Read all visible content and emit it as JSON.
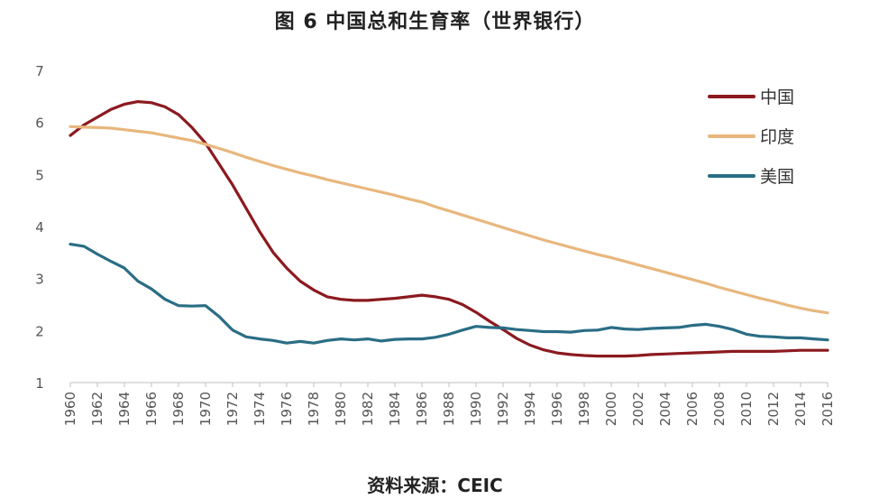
{
  "chart_data": {
    "type": "line",
    "title": "图 6  中国总和生育率（世界银行）",
    "source": "资料来源：CEIC",
    "xlabel": "",
    "ylabel": "",
    "xlim": [
      1960,
      2016
    ],
    "ylim": [
      1,
      7
    ],
    "yticks": [
      1,
      2,
      3,
      4,
      5,
      6,
      7
    ],
    "xticks": [
      1960,
      1962,
      1964,
      1966,
      1968,
      1970,
      1972,
      1974,
      1976,
      1978,
      1980,
      1982,
      1984,
      1986,
      1988,
      1990,
      1992,
      1994,
      1996,
      1998,
      2000,
      2002,
      2004,
      2006,
      2008,
      2010,
      2012,
      2014,
      2016
    ],
    "grid": false,
    "legend_position": "top-right",
    "x": [
      1960,
      1961,
      1962,
      1963,
      1964,
      1965,
      1966,
      1967,
      1968,
      1969,
      1970,
      1971,
      1972,
      1973,
      1974,
      1975,
      1976,
      1977,
      1978,
      1979,
      1980,
      1981,
      1982,
      1983,
      1984,
      1985,
      1986,
      1987,
      1988,
      1989,
      1990,
      1991,
      1992,
      1993,
      1994,
      1995,
      1996,
      1997,
      1998,
      1999,
      2000,
      2001,
      2002,
      2003,
      2004,
      2005,
      2006,
      2007,
      2008,
      2009,
      2010,
      2011,
      2012,
      2013,
      2014,
      2015,
      2016
    ],
    "series": [
      {
        "name": "中国",
        "color": "#8b1a1f",
        "values": [
          5.75,
          5.95,
          6.1,
          6.25,
          6.35,
          6.4,
          6.38,
          6.3,
          6.15,
          5.9,
          5.6,
          5.2,
          4.8,
          4.35,
          3.9,
          3.5,
          3.2,
          2.95,
          2.78,
          2.65,
          2.6,
          2.58,
          2.58,
          2.6,
          2.62,
          2.65,
          2.68,
          2.65,
          2.6,
          2.5,
          2.35,
          2.18,
          2.02,
          1.85,
          1.72,
          1.63,
          1.57,
          1.54,
          1.52,
          1.51,
          1.51,
          1.51,
          1.52,
          1.54,
          1.55,
          1.56,
          1.57,
          1.58,
          1.59,
          1.6,
          1.6,
          1.6,
          1.6,
          1.61,
          1.62,
          1.62,
          1.62
        ]
      },
      {
        "name": "印度",
        "color": "#e8b77d",
        "values": [
          5.92,
          5.91,
          5.9,
          5.89,
          5.86,
          5.83,
          5.8,
          5.75,
          5.7,
          5.65,
          5.58,
          5.5,
          5.42,
          5.33,
          5.25,
          5.17,
          5.1,
          5.03,
          4.97,
          4.9,
          4.84,
          4.78,
          4.72,
          4.66,
          4.6,
          4.53,
          4.47,
          4.38,
          4.3,
          4.22,
          4.14,
          4.06,
          3.98,
          3.9,
          3.82,
          3.74,
          3.67,
          3.6,
          3.53,
          3.46,
          3.4,
          3.33,
          3.26,
          3.19,
          3.12,
          3.05,
          2.98,
          2.91,
          2.83,
          2.76,
          2.69,
          2.62,
          2.56,
          2.49,
          2.43,
          2.38,
          2.34
        ]
      },
      {
        "name": "美国",
        "color": "#2a6d85",
        "values": [
          3.66,
          3.62,
          3.47,
          3.33,
          3.2,
          2.95,
          2.8,
          2.6,
          2.48,
          2.47,
          2.48,
          2.27,
          2.01,
          1.88,
          1.84,
          1.81,
          1.76,
          1.79,
          1.76,
          1.81,
          1.84,
          1.82,
          1.84,
          1.8,
          1.83,
          1.84,
          1.84,
          1.87,
          1.93,
          2.01,
          2.08,
          2.06,
          2.05,
          2.02,
          2.0,
          1.98,
          1.98,
          1.97,
          2.0,
          2.01,
          2.06,
          2.03,
          2.02,
          2.04,
          2.05,
          2.06,
          2.1,
          2.12,
          2.08,
          2.02,
          1.93,
          1.89,
          1.88,
          1.86,
          1.86,
          1.84,
          1.82
        ]
      }
    ]
  }
}
